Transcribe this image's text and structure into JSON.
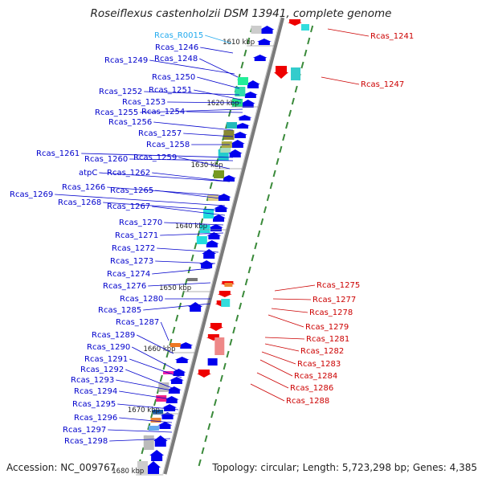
{
  "title": "Roseiflexus castenholzii DSM 13941, complete genome",
  "accession": "Accession: NC_009767",
  "topology": "Topology: circular; Length: 5,723,298 bp; Genes: 4,385",
  "colors": {
    "left_label": "#0000cc",
    "right_label": "#cc0000",
    "rna_label": "#22aaee",
    "forward_gene": "#0000ee",
    "reverse_gene": "#ee0000",
    "backbone": "#888888"
  },
  "ticks": [
    "1610 kbp",
    "1620 kbp",
    "1630 kbp",
    "1640 kbp",
    "1650 kbp",
    "1660 kbp",
    "1670 kbp",
    "1680 kbp"
  ],
  "left_labels": [
    "Rcas_R0015",
    "Rcas_1246",
    "Rcas_1249",
    "Rcas_1248",
    "Rcas_1250",
    "Rcas_1252",
    "Rcas_1251",
    "Rcas_1253",
    "Rcas_1255",
    "Rcas_1254",
    "Rcas_1256",
    "Rcas_1257",
    "Rcas_1258",
    "Rcas_1261",
    "Rcas_1260",
    "Rcas_1259",
    "atpC",
    "Rcas_1262",
    "Rcas_1266",
    "Rcas_1265",
    "Rcas_1269",
    "Rcas_1268",
    "Rcas_1267",
    "Rcas_1270",
    "Rcas_1271",
    "Rcas_1272",
    "Rcas_1273",
    "Rcas_1274",
    "Rcas_1276",
    "Rcas_1280",
    "Rcas_1285",
    "Rcas_1287",
    "Rcas_1289",
    "Rcas_1290",
    "Rcas_1291",
    "Rcas_1292",
    "Rcas_1293",
    "Rcas_1294",
    "Rcas_1295",
    "Rcas_1296",
    "Rcas_1297",
    "Rcas_1298"
  ],
  "right_labels": [
    "Rcas_1241",
    "Rcas_1247",
    "Rcas_1275",
    "Rcas_1277",
    "Rcas_1278",
    "Rcas_1279",
    "Rcas_1281",
    "Rcas_1282",
    "Rcas_1283",
    "Rcas_1284",
    "Rcas_1286",
    "Rcas_1288"
  ]
}
